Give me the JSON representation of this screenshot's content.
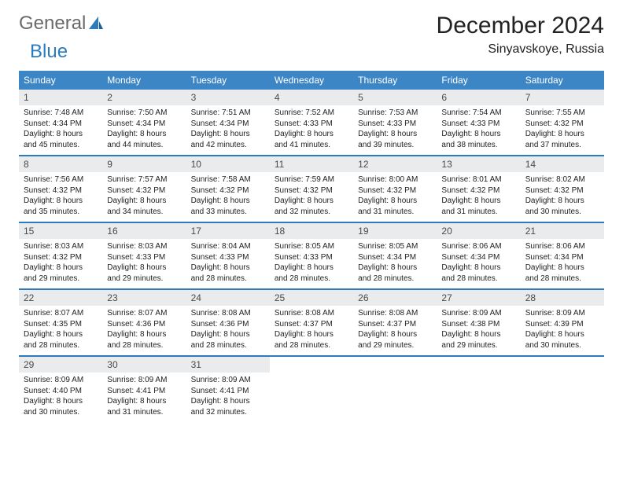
{
  "logo": {
    "text1": "General",
    "text2": "Blue"
  },
  "title": "December 2024",
  "location": "Sinyavskoye, Russia",
  "colors": {
    "header_bg": "#3d86c6",
    "week_divider": "#2b7bbd",
    "daynum_bg": "#e9ebec",
    "logo_gray": "#6a6a6a",
    "logo_blue": "#2b7bbd"
  },
  "day_names": [
    "Sunday",
    "Monday",
    "Tuesday",
    "Wednesday",
    "Thursday",
    "Friday",
    "Saturday"
  ],
  "weeks": [
    [
      {
        "n": "1",
        "sr": "7:48 AM",
        "ss": "4:34 PM",
        "dl": "8 hours and 45 minutes."
      },
      {
        "n": "2",
        "sr": "7:50 AM",
        "ss": "4:34 PM",
        "dl": "8 hours and 44 minutes."
      },
      {
        "n": "3",
        "sr": "7:51 AM",
        "ss": "4:34 PM",
        "dl": "8 hours and 42 minutes."
      },
      {
        "n": "4",
        "sr": "7:52 AM",
        "ss": "4:33 PM",
        "dl": "8 hours and 41 minutes."
      },
      {
        "n": "5",
        "sr": "7:53 AM",
        "ss": "4:33 PM",
        "dl": "8 hours and 39 minutes."
      },
      {
        "n": "6",
        "sr": "7:54 AM",
        "ss": "4:33 PM",
        "dl": "8 hours and 38 minutes."
      },
      {
        "n": "7",
        "sr": "7:55 AM",
        "ss": "4:32 PM",
        "dl": "8 hours and 37 minutes."
      }
    ],
    [
      {
        "n": "8",
        "sr": "7:56 AM",
        "ss": "4:32 PM",
        "dl": "8 hours and 35 minutes."
      },
      {
        "n": "9",
        "sr": "7:57 AM",
        "ss": "4:32 PM",
        "dl": "8 hours and 34 minutes."
      },
      {
        "n": "10",
        "sr": "7:58 AM",
        "ss": "4:32 PM",
        "dl": "8 hours and 33 minutes."
      },
      {
        "n": "11",
        "sr": "7:59 AM",
        "ss": "4:32 PM",
        "dl": "8 hours and 32 minutes."
      },
      {
        "n": "12",
        "sr": "8:00 AM",
        "ss": "4:32 PM",
        "dl": "8 hours and 31 minutes."
      },
      {
        "n": "13",
        "sr": "8:01 AM",
        "ss": "4:32 PM",
        "dl": "8 hours and 31 minutes."
      },
      {
        "n": "14",
        "sr": "8:02 AM",
        "ss": "4:32 PM",
        "dl": "8 hours and 30 minutes."
      }
    ],
    [
      {
        "n": "15",
        "sr": "8:03 AM",
        "ss": "4:32 PM",
        "dl": "8 hours and 29 minutes."
      },
      {
        "n": "16",
        "sr": "8:03 AM",
        "ss": "4:33 PM",
        "dl": "8 hours and 29 minutes."
      },
      {
        "n": "17",
        "sr": "8:04 AM",
        "ss": "4:33 PM",
        "dl": "8 hours and 28 minutes."
      },
      {
        "n": "18",
        "sr": "8:05 AM",
        "ss": "4:33 PM",
        "dl": "8 hours and 28 minutes."
      },
      {
        "n": "19",
        "sr": "8:05 AM",
        "ss": "4:34 PM",
        "dl": "8 hours and 28 minutes."
      },
      {
        "n": "20",
        "sr": "8:06 AM",
        "ss": "4:34 PM",
        "dl": "8 hours and 28 minutes."
      },
      {
        "n": "21",
        "sr": "8:06 AM",
        "ss": "4:34 PM",
        "dl": "8 hours and 28 minutes."
      }
    ],
    [
      {
        "n": "22",
        "sr": "8:07 AM",
        "ss": "4:35 PM",
        "dl": "8 hours and 28 minutes."
      },
      {
        "n": "23",
        "sr": "8:07 AM",
        "ss": "4:36 PM",
        "dl": "8 hours and 28 minutes."
      },
      {
        "n": "24",
        "sr": "8:08 AM",
        "ss": "4:36 PM",
        "dl": "8 hours and 28 minutes."
      },
      {
        "n": "25",
        "sr": "8:08 AM",
        "ss": "4:37 PM",
        "dl": "8 hours and 28 minutes."
      },
      {
        "n": "26",
        "sr": "8:08 AM",
        "ss": "4:37 PM",
        "dl": "8 hours and 29 minutes."
      },
      {
        "n": "27",
        "sr": "8:09 AM",
        "ss": "4:38 PM",
        "dl": "8 hours and 29 minutes."
      },
      {
        "n": "28",
        "sr": "8:09 AM",
        "ss": "4:39 PM",
        "dl": "8 hours and 30 minutes."
      }
    ],
    [
      {
        "n": "29",
        "sr": "8:09 AM",
        "ss": "4:40 PM",
        "dl": "8 hours and 30 minutes."
      },
      {
        "n": "30",
        "sr": "8:09 AM",
        "ss": "4:41 PM",
        "dl": "8 hours and 31 minutes."
      },
      {
        "n": "31",
        "sr": "8:09 AM",
        "ss": "4:41 PM",
        "dl": "8 hours and 32 minutes."
      },
      null,
      null,
      null,
      null
    ]
  ],
  "labels": {
    "sunrise": "Sunrise: ",
    "sunset": "Sunset: ",
    "daylight": "Daylight: "
  }
}
